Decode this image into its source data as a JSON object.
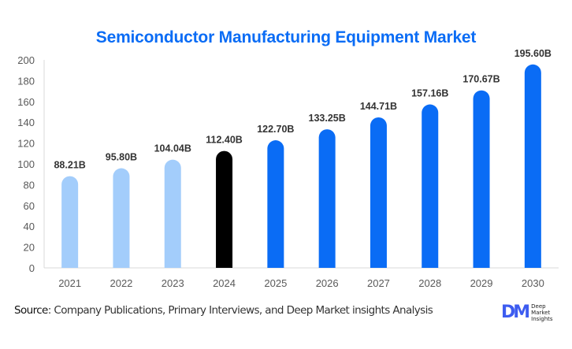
{
  "chart_data": {
    "type": "bar",
    "title": "Semiconductor Manufacturing Equipment Market",
    "xlabel": "",
    "ylabel": "",
    "categories": [
      "2021",
      "2022",
      "2023",
      "2024",
      "2025",
      "2026",
      "2027",
      "2028",
      "2029",
      "2030"
    ],
    "values": [
      88.21,
      95.8,
      104.04,
      112.4,
      122.7,
      133.25,
      144.71,
      157.16,
      170.67,
      195.6
    ],
    "data_labels": [
      "88.21B",
      "95.80B",
      "104.04B",
      "112.40B",
      "122.70B",
      "133.25B",
      "144.71B",
      "157.16B",
      "170.67B",
      "195.60B"
    ],
    "ylim": [
      0,
      200
    ],
    "yticks": [
      0,
      20,
      40,
      60,
      80,
      100,
      120,
      140,
      160,
      180,
      200
    ],
    "grid": false,
    "legend": "none",
    "bar_colors": [
      "#a3cdfb",
      "#a3cdfb",
      "#a3cdfb",
      "#000000",
      "#0a6cf5",
      "#0a6cf5",
      "#0a6cf5",
      "#0a6cf5",
      "#0a6cf5",
      "#0a6cf5"
    ],
    "color_groups": {
      "historical": "#a3cdfb",
      "base_year": "#000000",
      "forecast": "#0a6cf5"
    }
  },
  "footer": {
    "source_label": "Source",
    "source_text": ": Company Publications, Primary Interviews, and Deep Market insights Analysis"
  },
  "logo": {
    "mark": "DM",
    "line1": "Deep",
    "line2": "Market",
    "line3": "Insights"
  },
  "colors": {
    "title": "#0a6cf5",
    "axis_text": "#595959",
    "data_label": "#333333"
  }
}
